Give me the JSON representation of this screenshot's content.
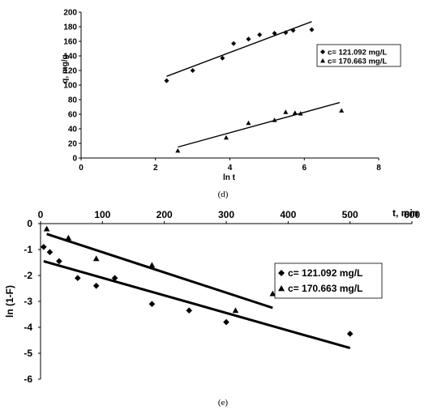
{
  "chart_data": [
    {
      "type": "scatter",
      "caption": "(d)",
      "xlabel": "ln t",
      "ylabel": "q, mg/g",
      "xlim": [
        0,
        8
      ],
      "ylim": [
        0,
        200
      ],
      "xticks": [
        0,
        2,
        4,
        6,
        8
      ],
      "yticks": [
        0,
        20,
        40,
        60,
        80,
        100,
        120,
        140,
        160,
        180,
        200
      ],
      "legend_position": "right",
      "series": [
        {
          "name": "c= 121.092 mg/L",
          "marker": "diamond",
          "x": [
            2.3,
            3.0,
            3.8,
            4.1,
            4.5,
            4.8,
            5.2,
            5.5,
            5.7,
            6.2
          ],
          "y": [
            106,
            120,
            137,
            157,
            163,
            169,
            171,
            172,
            175,
            176
          ],
          "trendline": {
            "x": [
              2.3,
              6.2
            ],
            "y": [
              112,
              187
            ]
          }
        },
        {
          "name": "c= 170.663 mg/L",
          "marker": "triangle",
          "x": [
            2.6,
            3.9,
            4.5,
            5.2,
            5.5,
            5.75,
            5.9,
            7.0
          ],
          "y": [
            10,
            28,
            48,
            52,
            63,
            62,
            61,
            65
          ],
          "trendline": {
            "x": [
              2.6,
              6.95
            ],
            "y": [
              15,
              76
            ]
          }
        }
      ]
    },
    {
      "type": "scatter",
      "caption": "(e)",
      "xlabel": "t, min",
      "ylabel": "ln (1-F)",
      "xlim": [
        0,
        600
      ],
      "ylim": [
        -6,
        0
      ],
      "xticks": [
        0,
        100,
        200,
        300,
        400,
        500,
        600
      ],
      "yticks": [
        0,
        -1,
        -2,
        -3,
        -4,
        -5,
        -6
      ],
      "legend_position": "right",
      "series": [
        {
          "name": "c= 121.092 mg/L",
          "marker": "diamond",
          "x": [
            5,
            15,
            30,
            60,
            90,
            120,
            180,
            240,
            300,
            500
          ],
          "y": [
            -0.9,
            -1.1,
            -1.45,
            -2.1,
            -2.4,
            -2.1,
            -3.1,
            -3.35,
            -3.8,
            -4.25
          ],
          "trendline": {
            "x": [
              5,
              500
            ],
            "y": [
              -1.45,
              -4.8
            ]
          }
        },
        {
          "name": "c= 170.663 mg/L",
          "marker": "triangle",
          "x": [
            10,
            45,
            90,
            180,
            315,
            375
          ],
          "y": [
            -0.2,
            -0.55,
            -1.35,
            -1.6,
            -3.35,
            -2.7
          ],
          "trendline": {
            "x": [
              10,
              375
            ],
            "y": [
              -0.4,
              -3.25
            ]
          }
        }
      ]
    }
  ]
}
